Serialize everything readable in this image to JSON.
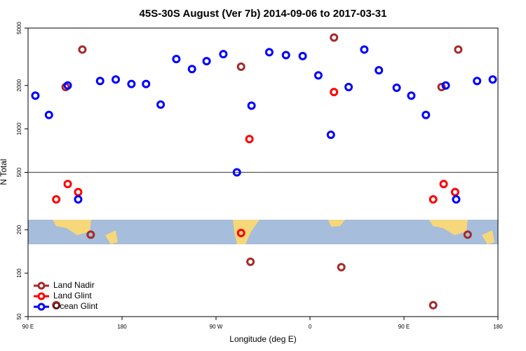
{
  "chart_data": {
    "type": "scatter",
    "title": "45S-30S August (Ver 7b)   2014-09-06 to 2017-03-31",
    "x_label": "Longitude (deg E)",
    "y_label": "N Total",
    "xlim": [
      90,
      540
    ],
    "xticks": [
      {
        "value": 90,
        "label": "90 E"
      },
      180,
      {
        "value": 270,
        "label": "90 W"
      },
      {
        "value": 360,
        "label": "0"
      },
      {
        "value": 450,
        "label": "90 E"
      },
      {
        "value": 540,
        "label": "180"
      }
    ],
    "ylim": [
      50,
      5000
    ],
    "yscale": "log",
    "yticks": [
      50,
      100,
      200,
      500,
      1000,
      2000,
      5000
    ],
    "reference_line": 500,
    "legend": "lower left",
    "series": [
      {
        "name": "Land Nadir",
        "color": "#a52a2a",
        "x": [
          126,
          142,
          150,
          117,
          294,
          303,
          383,
          390,
          478,
          486,
          502,
          511
        ],
        "values": [
          1950,
          3550,
          185,
          60,
          2700,
          120,
          4300,
          110,
          60,
          1950,
          3550,
          185
        ]
      },
      {
        "name": "Land Glint",
        "color": "#ff0000",
        "x": [
          117,
          128,
          138,
          294,
          302,
          383,
          478,
          488,
          499
        ],
        "values": [
          325,
          415,
          365,
          190,
          850,
          1800,
          325,
          415,
          365
        ]
      },
      {
        "name": "Ocean Glint",
        "color": "#0000ff",
        "x": [
          97,
          110,
          128,
          138,
          159,
          174,
          189,
          203,
          217,
          232,
          247,
          261,
          277,
          290,
          304,
          321,
          337,
          353,
          368,
          380,
          397,
          412,
          426,
          443,
          457,
          471,
          490,
          500,
          520,
          535
        ],
        "values": [
          1700,
          1250,
          2000,
          325,
          2150,
          2200,
          2050,
          2050,
          1475,
          3050,
          2600,
          2950,
          3300,
          500,
          1450,
          3400,
          3250,
          3200,
          2350,
          910,
          1950,
          3550,
          2550,
          1930,
          1700,
          1250,
          2000,
          325,
          2150,
          2200
        ]
      }
    ]
  }
}
